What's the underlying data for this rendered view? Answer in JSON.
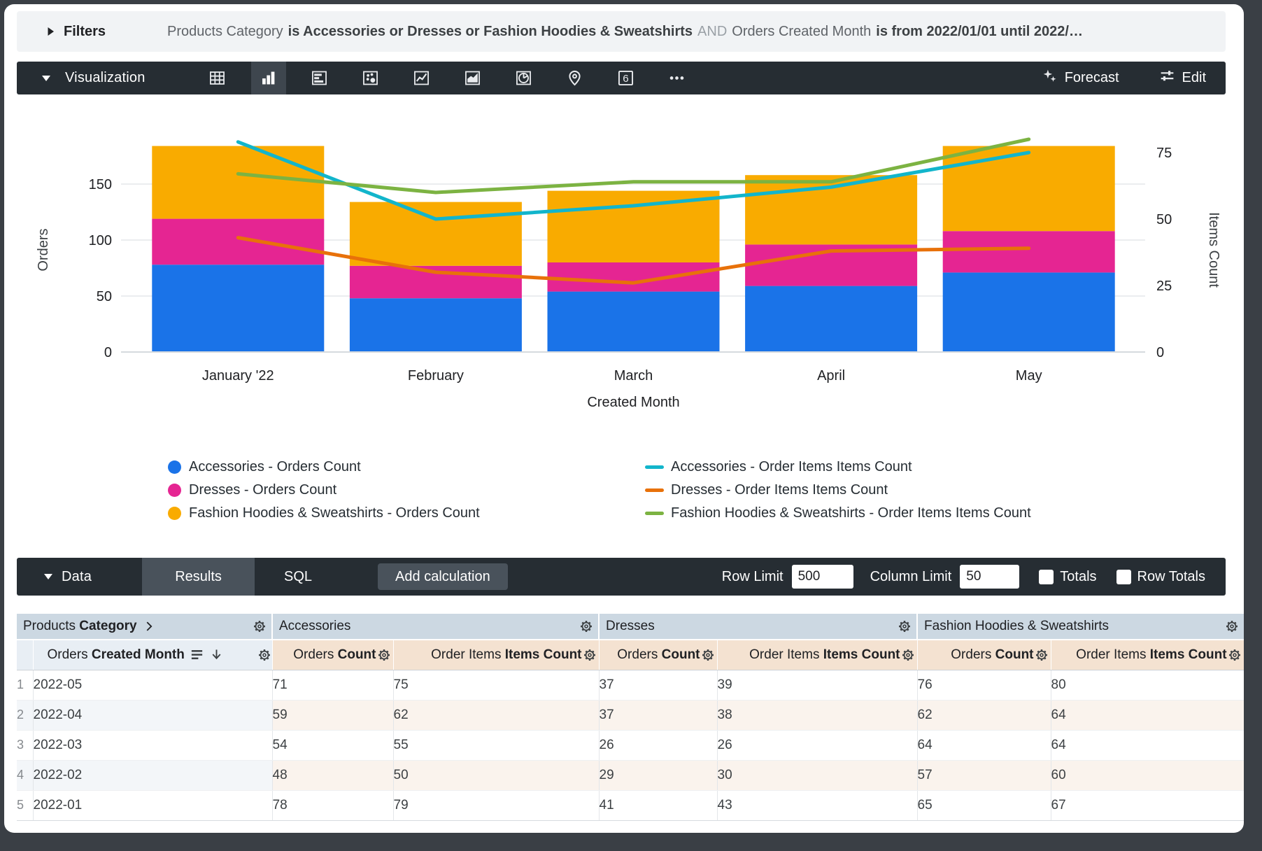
{
  "filters": {
    "label": "Filters",
    "parts": [
      {
        "style": "dim",
        "text": "Products Category"
      },
      {
        "style": "bold",
        "text": "is Accessories or Dresses or Fashion Hoodies & Sweatshirts"
      },
      {
        "style": "and",
        "text": "AND"
      },
      {
        "style": "dim",
        "text": "Orders Created Month"
      },
      {
        "style": "bold",
        "text": "is from 2022/01/01 until 2022/…"
      }
    ]
  },
  "viz_toolbar": {
    "label": "Visualization",
    "icons": [
      {
        "name": "table-chart-icon"
      },
      {
        "name": "column-chart-icon",
        "selected": true
      },
      {
        "name": "bar-chart-icon"
      },
      {
        "name": "scatter-chart-icon"
      },
      {
        "name": "line-chart-icon"
      },
      {
        "name": "area-chart-icon"
      },
      {
        "name": "pie-chart-icon"
      },
      {
        "name": "map-chart-icon"
      },
      {
        "name": "single-value-icon",
        "label": "6"
      },
      {
        "name": "more-options-icon"
      }
    ],
    "forecast_label": "Forecast",
    "edit_label": "Edit"
  },
  "chart_data": {
    "type": "combo-stacked-column-line",
    "categories": [
      "January '22",
      "February",
      "March",
      "April",
      "May"
    ],
    "xlabel": "Created Month",
    "ylabel_left": "Orders",
    "ylabel_right": "Items Count",
    "yticks_left": [
      0,
      50,
      100,
      150
    ],
    "yticks_right": [
      0,
      25,
      50,
      75
    ],
    "ylim_left": [
      0,
      210
    ],
    "ylim_right": [
      0,
      88
    ],
    "grid": true,
    "bar_series": [
      {
        "name": "Accessories - Orders Count",
        "color": "#1A73E8",
        "values": [
          78,
          48,
          54,
          59,
          71
        ]
      },
      {
        "name": "Dresses - Orders Count",
        "color": "#E52592",
        "values": [
          41,
          29,
          26,
          37,
          37
        ]
      },
      {
        "name": "Fashion Hoodies & Sweatshirts - Orders Count",
        "color": "#F9AB00",
        "values": [
          65,
          57,
          64,
          62,
          76
        ]
      }
    ],
    "line_series": [
      {
        "name": "Accessories - Order Items Items Count",
        "color": "#12B5CB",
        "values": [
          79,
          50,
          55,
          62,
          75
        ]
      },
      {
        "name": "Dresses - Order Items Items Count",
        "color": "#E8710A",
        "values": [
          43,
          30,
          26,
          38,
          39
        ]
      },
      {
        "name": "Fashion Hoodies & Sweatshirts - Order Items Items Count",
        "color": "#7CB342",
        "values": [
          67,
          60,
          64,
          64,
          80
        ]
      }
    ],
    "legend_position": "bottom"
  },
  "data_bar": {
    "label": "Data",
    "tabs": [
      "Results",
      "SQL"
    ],
    "active_tab": "Results",
    "add_calculation_label": "Add calculation",
    "row_limit_label": "Row Limit",
    "row_limit_value": "500",
    "column_limit_label": "Column Limit",
    "column_limit_value": "50",
    "totals_label": "Totals",
    "row_totals_label": "Row Totals"
  },
  "table": {
    "groups": [
      {
        "prefix": "Products ",
        "bold": "Category",
        "chevron": true
      },
      {
        "label": "Accessories"
      },
      {
        "label": "Dresses"
      },
      {
        "label": "Fashion Hoodies & Sweatshirts"
      }
    ],
    "dimension_header": {
      "prefix": "Orders ",
      "bold": "Created Month"
    },
    "measure_columns": [
      {
        "prefix": "Orders ",
        "bold": "Count"
      },
      {
        "prefix": "Order Items ",
        "bold": "Items Count"
      },
      {
        "prefix": "Orders ",
        "bold": "Count"
      },
      {
        "prefix": "Order Items ",
        "bold": "Items Count"
      },
      {
        "prefix": "Orders ",
        "bold": "Count"
      },
      {
        "prefix": "Order Items ",
        "bold": "Items Count"
      }
    ],
    "rows": [
      {
        "n": "1",
        "month": "2022-05",
        "v": [
          71,
          75,
          37,
          39,
          76,
          80
        ]
      },
      {
        "n": "2",
        "month": "2022-04",
        "v": [
          59,
          62,
          37,
          38,
          62,
          64
        ]
      },
      {
        "n": "3",
        "month": "2022-03",
        "v": [
          54,
          55,
          26,
          26,
          64,
          64
        ]
      },
      {
        "n": "4",
        "month": "2022-02",
        "v": [
          48,
          50,
          29,
          30,
          57,
          60
        ]
      },
      {
        "n": "5",
        "month": "2022-01",
        "v": [
          78,
          79,
          41,
          43,
          65,
          67
        ]
      }
    ]
  }
}
